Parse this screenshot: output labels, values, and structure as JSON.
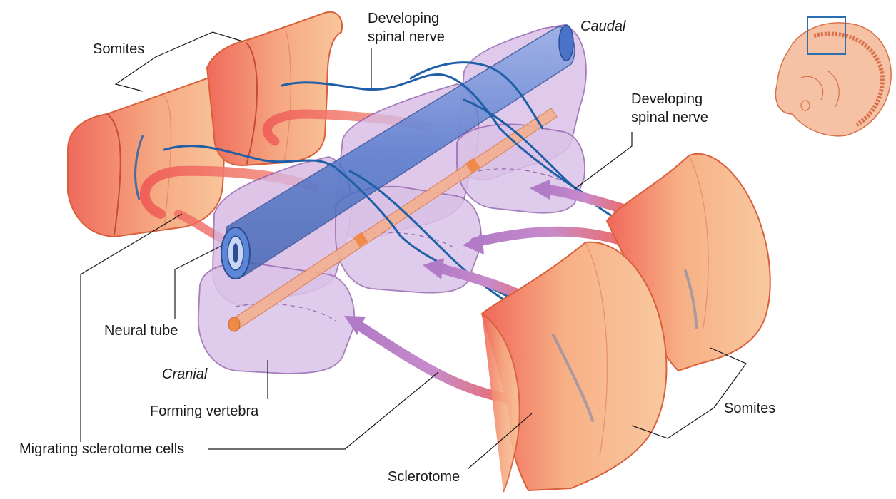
{
  "labels": {
    "somites_top": "Somites",
    "developing_nerve_top_1": "Developing",
    "developing_nerve_top_2": "spinal nerve",
    "caudal": "Caudal",
    "developing_nerve_right_1": "Developing",
    "developing_nerve_right_2": "spinal nerve",
    "neural_tube": "Neural tube",
    "cranial": "Cranial",
    "forming_vertebra": "Forming vertebra",
    "migrating_cells": "Migrating sclerotome cells",
    "sclerotome": "Sclerotome",
    "somites_right": "Somites"
  },
  "colors": {
    "somite_fill": "#f7b58a",
    "somite_red": "#ec5a55",
    "somite_stroke": "#d9603a",
    "vertebra_fill": "#c9a6dc",
    "vertebra_stroke": "#8e5aa8",
    "neural_tube": "#4a72c8",
    "nerve": "#1f5fa8",
    "notochord": "#f0a06a",
    "migration_arrow": "#b07ac4",
    "inset_frame": "#2a6fb0",
    "leader_line": "#1a1a1a"
  }
}
